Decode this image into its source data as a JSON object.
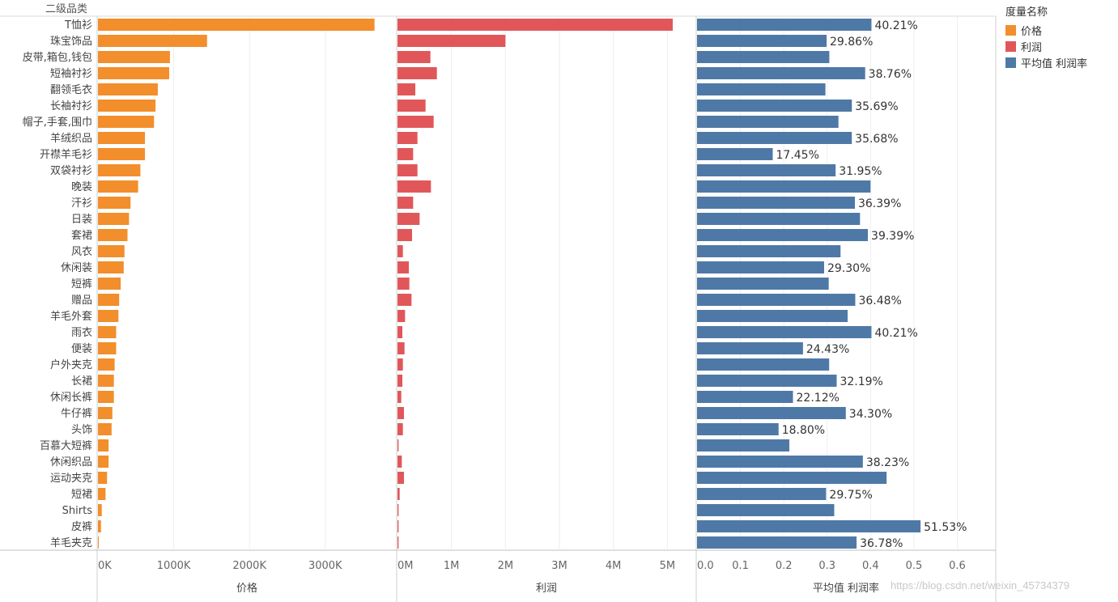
{
  "chart_data": {
    "type": "bar",
    "orientation": "horizontal",
    "row_header": "二级品类",
    "categories": [
      "T恤衫",
      "珠宝饰品",
      "皮带,箱包,钱包",
      "短袖衬衫",
      "翻领毛衣",
      "长袖衬衫",
      "帽子,手套,围巾",
      "羊绒织品",
      "开襟羊毛衫",
      "双袋衬衫",
      "晚装",
      "汗衫",
      "日装",
      "套裙",
      "风衣",
      "休闲装",
      "短裤",
      "赠品",
      "羊毛外套",
      "雨衣",
      "便装",
      "户外夹克",
      "长裙",
      "休闲长裤",
      "牛仔裤",
      "头饰",
      "百慕大短裤",
      "休闲织品",
      "运动夹克",
      "短裙",
      "Shirts",
      "皮裤",
      "羊毛夹克"
    ],
    "panels": [
      {
        "name": "价格",
        "xlabel": "价格",
        "color": "#f28e2b",
        "xlim": [
          0,
          3900000
        ],
        "ticks": [
          0,
          1000000,
          2000000,
          3000000
        ],
        "tick_labels": [
          "0K",
          "1000K",
          "2000K",
          "3000K"
        ],
        "values": [
          3650000,
          1440000,
          950000,
          940000,
          790000,
          760000,
          740000,
          620000,
          620000,
          560000,
          530000,
          430000,
          410000,
          390000,
          350000,
          340000,
          300000,
          280000,
          270000,
          240000,
          240000,
          220000,
          210000,
          210000,
          190000,
          180000,
          140000,
          140000,
          120000,
          100000,
          50000,
          40000,
          10000
        ]
      },
      {
        "name": "利润",
        "xlabel": "利润",
        "color": "#e15759",
        "xlim": [
          0,
          5400000
        ],
        "ticks": [
          0,
          1000000,
          2000000,
          3000000,
          4000000,
          5000000
        ],
        "tick_labels": [
          "0M",
          "1M",
          "2M",
          "3M",
          "4M",
          "5M"
        ],
        "values": [
          5100000,
          2000000,
          610000,
          730000,
          330000,
          520000,
          670000,
          370000,
          290000,
          370000,
          620000,
          290000,
          410000,
          270000,
          100000,
          210000,
          220000,
          260000,
          140000,
          90000,
          130000,
          100000,
          90000,
          70000,
          120000,
          100000,
          20000,
          80000,
          120000,
          40000,
          20000,
          20000,
          20000
        ]
      },
      {
        "name": "平均值 利润率",
        "xlabel": "平均值 利润率",
        "color": "#4e79a7",
        "xlim": [
          0,
          0.67
        ],
        "ticks": [
          0,
          0.1,
          0.2,
          0.3,
          0.4,
          0.5,
          0.6
        ],
        "tick_labels": [
          "0.0",
          "0.1",
          "0.2",
          "0.3",
          "0.4",
          "0.5",
          "0.6"
        ],
        "values": [
          0.4021,
          0.2986,
          0.305,
          0.3876,
          0.296,
          0.3569,
          0.326,
          0.3568,
          0.1745,
          0.3195,
          0.4,
          0.3639,
          0.3757,
          0.3939,
          0.3308,
          0.293,
          0.3036,
          0.3648,
          0.3472,
          0.4021,
          0.2443,
          0.3046,
          0.3219,
          0.2212,
          0.343,
          0.188,
          0.2128,
          0.3823,
          0.437,
          0.2975,
          0.3163,
          0.5153,
          0.3678
        ],
        "data_labels": [
          "40.21%",
          "29.86%",
          "",
          "38.76%",
          "",
          "35.69%",
          "",
          "35.68%",
          "17.45%",
          "31.95%",
          "",
          "36.39%",
          "",
          "39.39%",
          "",
          "29.30%",
          "",
          "36.48%",
          "",
          "40.21%",
          "24.43%",
          "",
          "32.19%",
          "22.12%",
          "34.30%",
          "18.80%",
          "",
          "38.23%",
          "",
          "29.75%",
          "",
          "51.53%",
          "36.78%"
        ]
      }
    ],
    "legend": {
      "title": "度量名称",
      "placement": "right",
      "items": [
        {
          "label": "价格",
          "color": "#f28e2b"
        },
        {
          "label": "利润",
          "color": "#e15759"
        },
        {
          "label": "平均值 利润率",
          "color": "#4e79a7"
        }
      ]
    }
  },
  "watermark": "https://blog.csdn.net/weixin_45734379"
}
